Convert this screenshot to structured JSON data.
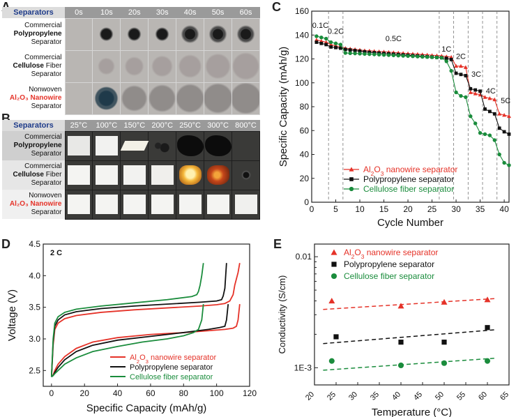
{
  "panels": {
    "a": "A",
    "b": "B",
    "c": "C",
    "d": "D",
    "e": "E"
  },
  "table_a": {
    "header": "Separators",
    "columns": [
      "0s",
      "10s",
      "20s",
      "30s",
      "40s",
      "50s",
      "60s"
    ],
    "rows": [
      {
        "line1": "Commercial",
        "line2_bold": "Polypropylene",
        "line3": "Separator"
      },
      {
        "line1": "Commercial",
        "line2_bold": "Cellulose",
        "line2_rest": " Fiber",
        "line3": "Separator"
      },
      {
        "line1": "Nonwoven",
        "line2_red": "Al₂O₃ Nanowire",
        "line3": "Separator"
      }
    ]
  },
  "table_b": {
    "header": "Separators",
    "columns": [
      "25°C",
      "100°C",
      "150°C",
      "200°C",
      "250°C",
      "300°C",
      "800°C"
    ],
    "rows": [
      {
        "line1": "Commercial",
        "line2_bold": "Polypropylene",
        "line3": "Separator"
      },
      {
        "line1": "Commercial",
        "line2_bold": "Cellulose",
        "line2_rest": " Fiber",
        "line3": "Separator"
      },
      {
        "line1": "Nonwoven",
        "line2_red": "Al₂O₃ Nanowire",
        "line3": "Separator"
      }
    ]
  },
  "chart_data": [
    {
      "panel": "C",
      "type": "line",
      "xlabel": "Cycle Number",
      "ylabel": "Specific Capacity (mAh/g)",
      "xlim": [
        0,
        41
      ],
      "ylim": [
        0,
        160
      ],
      "xticks": [
        0,
        5,
        10,
        15,
        20,
        25,
        30,
        35,
        40
      ],
      "yticks": [
        0,
        20,
        40,
        60,
        80,
        100,
        120,
        140,
        160
      ],
      "rate_boundaries": [
        3.5,
        6.5,
        26.5,
        29.5,
        32.5,
        35.5,
        38.5
      ],
      "rate_labels": [
        {
          "text": "0.1C",
          "x": 1.8,
          "y": 146
        },
        {
          "text": "0.2C",
          "x": 5,
          "y": 141
        },
        {
          "text": "0.5C",
          "x": 17,
          "y": 135
        },
        {
          "text": "1C",
          "x": 28,
          "y": 126
        },
        {
          "text": "2C",
          "x": 31,
          "y": 120
        },
        {
          "text": "3C",
          "x": 34.2,
          "y": 105
        },
        {
          "text": "4C",
          "x": 37.2,
          "y": 91
        },
        {
          "text": "5C",
          "x": 40.3,
          "y": 83
        }
      ],
      "legend": [
        "Al₂O₃ nanowire separator",
        "Polypropylene separator",
        "Cellulose fiber separator"
      ],
      "legend_position": "bottom-center",
      "series": [
        {
          "name": "Al₂O₃ nanowire separator",
          "color": "#e53228",
          "marker": "triangle",
          "x": [
            1,
            2,
            3,
            4,
            5,
            6,
            7,
            8,
            9,
            10,
            11,
            12,
            13,
            14,
            15,
            16,
            17,
            18,
            19,
            20,
            21,
            22,
            23,
            24,
            25,
            26,
            27,
            28,
            29,
            30,
            31,
            32,
            33,
            34,
            35,
            36,
            37,
            38,
            39,
            40,
            41
          ],
          "y": [
            136,
            135,
            134,
            132,
            131,
            130,
            129,
            128.5,
            128,
            127.5,
            127,
            126.8,
            126.5,
            126.2,
            126,
            125.7,
            125.4,
            125.1,
            124.8,
            124.5,
            124.2,
            124,
            123.7,
            123.4,
            123.1,
            122.8,
            122.5,
            122,
            121.5,
            114,
            114,
            113,
            92,
            91,
            90,
            88,
            87,
            86,
            74,
            73,
            72
          ]
        },
        {
          "name": "Polypropylene separator",
          "color": "#111111",
          "marker": "square",
          "x": [
            1,
            2,
            3,
            4,
            5,
            6,
            7,
            8,
            9,
            10,
            11,
            12,
            13,
            14,
            15,
            16,
            17,
            18,
            19,
            20,
            21,
            22,
            23,
            24,
            25,
            26,
            27,
            28,
            29,
            30,
            31,
            32,
            33,
            34,
            35,
            36,
            37,
            38,
            39,
            40,
            41
          ],
          "y": [
            134,
            133,
            132,
            130,
            129.5,
            129,
            128,
            127.5,
            127,
            126.5,
            126,
            125.5,
            125.2,
            124.9,
            124.6,
            124.3,
            124,
            123.7,
            123.4,
            123.1,
            122.8,
            122.5,
            122.2,
            121.9,
            121.6,
            121.3,
            121,
            120.5,
            119.5,
            108,
            107,
            106,
            95,
            94,
            93,
            78,
            76,
            74,
            62,
            59,
            57
          ]
        },
        {
          "name": "Cellulose fiber separator",
          "color": "#1a8c3c",
          "marker": "circle",
          "x": [
            1,
            2,
            3,
            4,
            5,
            6,
            7,
            8,
            9,
            10,
            11,
            12,
            13,
            14,
            15,
            16,
            17,
            18,
            19,
            20,
            21,
            22,
            23,
            24,
            25,
            26,
            27,
            28,
            29,
            30,
            31,
            32,
            33,
            34,
            35,
            36,
            37,
            38,
            39,
            40,
            41
          ],
          "y": [
            139,
            138,
            137,
            134,
            133,
            132,
            125,
            124.8,
            124.6,
            124.4,
            124.2,
            124,
            123.8,
            123.6,
            123.4,
            123.2,
            123,
            122.8,
            122.6,
            122.4,
            122.2,
            122,
            121.8,
            121.6,
            121.4,
            121.2,
            121,
            118,
            110,
            92,
            89,
            88,
            72,
            66,
            58,
            57,
            56,
            52,
            40,
            33,
            31
          ]
        }
      ]
    },
    {
      "panel": "D",
      "type": "line",
      "title": "2 C",
      "xlabel": "Specific Capacity (mAh/g)",
      "ylabel": "Voltage (V)",
      "xlim": [
        -5,
        120
      ],
      "ylim": [
        2.25,
        4.5
      ],
      "xticks": [
        0,
        20,
        40,
        60,
        80,
        100,
        120
      ],
      "yticks": [
        2.5,
        3.0,
        3.5,
        4.0,
        4.5
      ],
      "legend": [
        "Al₂O₃ nanowire separator",
        "Polypropylene separator",
        "Cellulose fiber separator"
      ],
      "legend_position": "bottom-right",
      "series": [
        {
          "name": "Al₂O₃ nanowire separator",
          "color": "#e53228",
          "charge": {
            "x": [
              0,
              1,
              2,
              4,
              8,
              15,
              30,
              50,
              70,
              90,
              100,
              105,
              108,
              110,
              111,
              112,
              113,
              114
            ],
            "y": [
              2.4,
              2.9,
              3.15,
              3.25,
              3.32,
              3.37,
              3.42,
              3.46,
              3.49,
              3.52,
              3.54,
              3.56,
              3.6,
              3.7,
              3.85,
              3.95,
              4.05,
              4.2
            ]
          },
          "discharge": {
            "x": [
              114,
              113,
              112,
              110,
              105,
              95,
              80,
              60,
              40,
              25,
              15,
              8,
              4,
              2,
              1,
              0
            ],
            "y": [
              3.55,
              3.3,
              3.2,
              3.17,
              3.15,
              3.13,
              3.1,
              3.07,
              3.02,
              2.95,
              2.85,
              2.72,
              2.6,
              2.5,
              2.43,
              2.4
            ]
          }
        },
        {
          "name": "Polypropylene separator",
          "color": "#111111",
          "charge": {
            "x": [
              0,
              1,
              2,
              4,
              8,
              15,
              30,
              50,
              70,
              90,
              100,
              103,
              104,
              105,
              105.5,
              106
            ],
            "y": [
              2.4,
              2.95,
              3.2,
              3.3,
              3.38,
              3.43,
              3.48,
              3.52,
              3.55,
              3.58,
              3.6,
              3.62,
              3.68,
              3.8,
              4.0,
              4.2
            ]
          },
          "discharge": {
            "x": [
              107,
              106,
              105,
              102,
              95,
              80,
              60,
              40,
              25,
              15,
              8,
              4,
              2,
              1,
              0
            ],
            "y": [
              3.55,
              3.3,
              3.2,
              3.18,
              3.15,
              3.1,
              3.04,
              2.98,
              2.9,
              2.8,
              2.67,
              2.55,
              2.47,
              2.42,
              2.4
            ]
          }
        },
        {
          "name": "Cellulose fiber separator",
          "color": "#1a8c3c",
          "charge": {
            "x": [
              0,
              1,
              2,
              4,
              8,
              15,
              30,
              50,
              70,
              85,
              88,
              89,
              90,
              91,
              91.5,
              92
            ],
            "y": [
              2.4,
              3.0,
              3.25,
              3.35,
              3.42,
              3.47,
              3.52,
              3.57,
              3.62,
              3.67,
              3.7,
              3.75,
              3.85,
              4.0,
              4.1,
              4.2
            ]
          },
          "discharge": {
            "x": [
              92,
              91,
              89,
              86,
              80,
              70,
              55,
              40,
              25,
              15,
              8,
              4,
              2,
              1,
              0
            ],
            "y": [
              3.55,
              3.3,
              3.15,
              3.1,
              3.05,
              3.0,
              2.95,
              2.88,
              2.8,
              2.7,
              2.6,
              2.5,
              2.45,
              2.42,
              2.4
            ]
          }
        }
      ]
    },
    {
      "panel": "E",
      "type": "scatter",
      "xlabel": "Temperature (°C)",
      "ylabel": "Conductivity (S/cm)",
      "xlim": [
        20,
        65
      ],
      "ylim": [
        0.0007,
        0.013
      ],
      "yscale": "log",
      "xticks": [
        20,
        25,
        30,
        35,
        40,
        45,
        50,
        55,
        60,
        65
      ],
      "ytick_labels": [
        {
          "value": 0.01,
          "label": "0.01"
        },
        {
          "value": 0.001,
          "label": "1E-3"
        }
      ],
      "legend": [
        "Al₂O₃ nanowire separator",
        "Polypropylene separator",
        "Cellulose fiber separator"
      ],
      "legend_position": "top-left",
      "series": [
        {
          "name": "Al₂O₃ nanowire separator",
          "color": "#e53228",
          "marker": "triangle",
          "x": [
            24,
            40,
            50,
            60
          ],
          "y": [
            0.004,
            0.0036,
            0.0039,
            0.0041
          ],
          "trend": [
            0.00335,
            0.0042
          ]
        },
        {
          "name": "Polypropylene separator",
          "color": "#111111",
          "marker": "square",
          "x": [
            25,
            40,
            50,
            60
          ],
          "y": [
            0.0019,
            0.0017,
            0.0017,
            0.0023
          ],
          "trend": [
            0.00165,
            0.0022
          ]
        },
        {
          "name": "Cellulose fiber separator",
          "color": "#1a8c3c",
          "marker": "circle",
          "x": [
            24,
            40,
            50,
            60
          ],
          "y": [
            0.00115,
            0.00105,
            0.0011,
            0.00115
          ],
          "trend": [
            0.00095,
            0.00122
          ]
        }
      ]
    }
  ]
}
